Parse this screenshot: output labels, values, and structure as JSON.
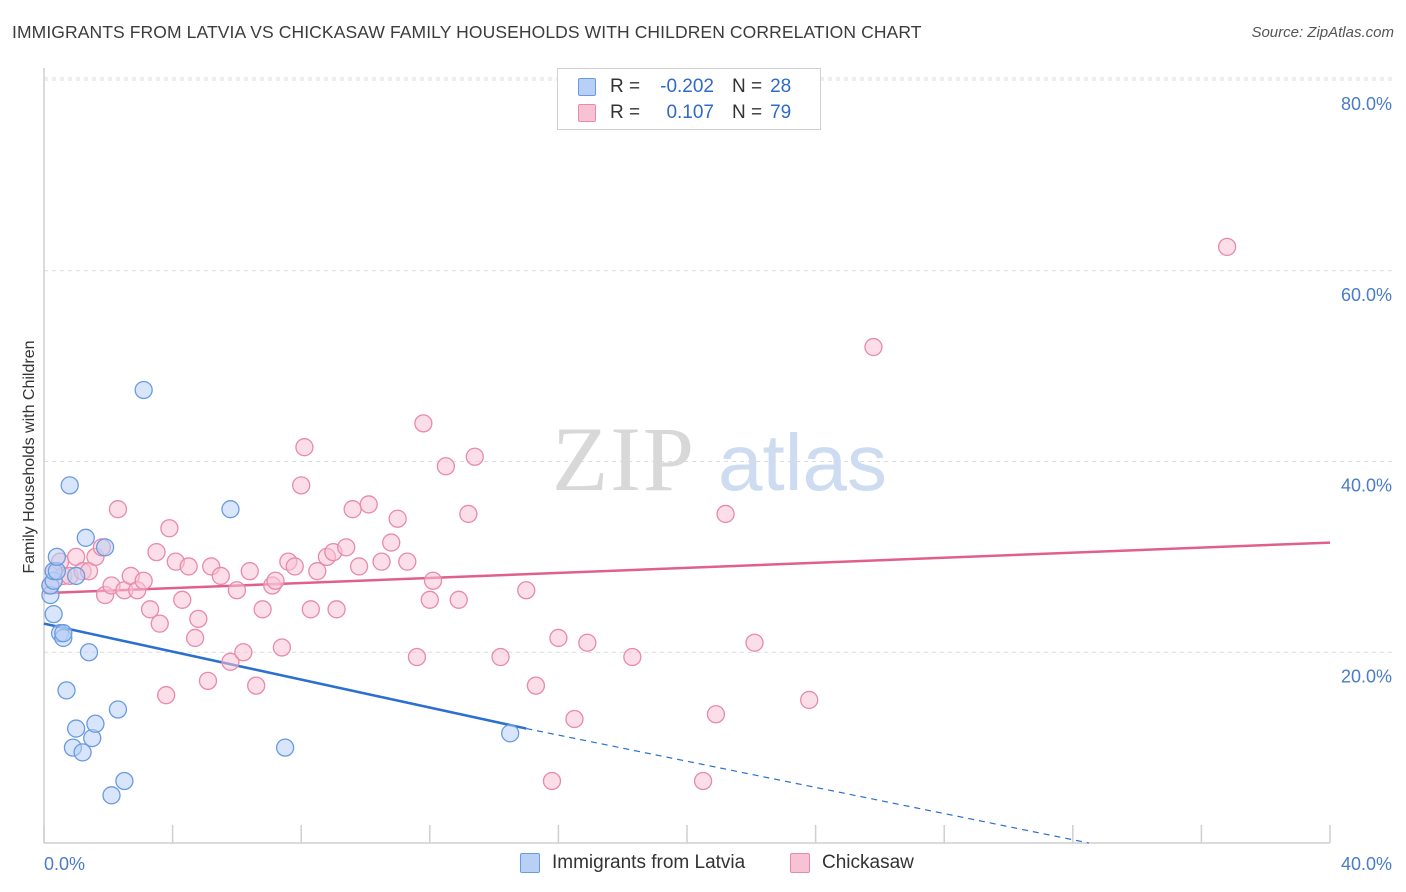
{
  "chart_data": {
    "type": "scatter",
    "title": "IMMIGRANTS FROM LATVIA VS CHICKASAW FAMILY HOUSEHOLDS WITH CHILDREN CORRELATION CHART",
    "source": "Source: ZipAtlas.com",
    "xlabel": "",
    "ylabel": "Family Households with Children",
    "xlim": [
      0,
      40
    ],
    "ylim": [
      0,
      80
    ],
    "x_ticks": [
      "0.0%",
      "40.0%"
    ],
    "y_ticks": [
      {
        "value": 20,
        "label": "20.0%"
      },
      {
        "value": 40,
        "label": "40.0%"
      },
      {
        "value": 60,
        "label": "60.0%"
      },
      {
        "value": 80,
        "label": "80.0%"
      }
    ],
    "watermark": {
      "part1": "ZIP",
      "part2": "atlas"
    },
    "legend": [
      {
        "r_label": "R =",
        "r_value": "-0.202",
        "n_label": "N =",
        "n_value": "28"
      },
      {
        "r_label": "R =",
        "r_value": "0.107",
        "n_label": "N =",
        "n_value": "79"
      }
    ],
    "series": [
      {
        "name": "Immigrants from Latvia",
        "color": "#6a9be0",
        "fill": "#b8d0f5",
        "line_color": "#2b6fd0",
        "trend": {
          "x0": 0,
          "y0": 23.0,
          "x1": 15.0,
          "y1": 12.0,
          "dash_to_x": 32.5,
          "dash_to_y": 0.0
        },
        "points": [
          [
            0.2,
            26.0
          ],
          [
            0.2,
            27.0
          ],
          [
            0.3,
            27.5
          ],
          [
            0.3,
            28.5
          ],
          [
            0.3,
            24.0
          ],
          [
            0.4,
            28.5
          ],
          [
            0.4,
            30.0
          ],
          [
            0.5,
            22.0
          ],
          [
            0.6,
            21.5
          ],
          [
            0.6,
            22.0
          ],
          [
            0.7,
            16.0
          ],
          [
            0.8,
            37.5
          ],
          [
            0.9,
            10.0
          ],
          [
            1.0,
            12.0
          ],
          [
            1.0,
            28.0
          ],
          [
            1.2,
            9.5
          ],
          [
            1.3,
            32.0
          ],
          [
            1.4,
            20.0
          ],
          [
            1.5,
            11.0
          ],
          [
            1.6,
            12.5
          ],
          [
            1.9,
            31.0
          ],
          [
            2.1,
            5.0
          ],
          [
            2.3,
            14.0
          ],
          [
            2.5,
            6.5
          ],
          [
            3.1,
            47.5
          ],
          [
            5.8,
            35.0
          ],
          [
            7.5,
            10.0
          ],
          [
            14.5,
            11.5
          ]
        ]
      },
      {
        "name": "Chickasaw",
        "color": "#e88aaa",
        "fill": "#f7c3d4",
        "line_color": "#e0608a",
        "trend": {
          "x0": 0,
          "y0": 26.2,
          "x1": 40.0,
          "y1": 31.5
        },
        "points": [
          [
            0.3,
            28.5
          ],
          [
            0.5,
            29.5
          ],
          [
            0.6,
            28.0
          ],
          [
            0.8,
            28.0
          ],
          [
            1.0,
            30.0
          ],
          [
            1.2,
            28.5
          ],
          [
            1.4,
            28.5
          ],
          [
            1.6,
            30.0
          ],
          [
            1.8,
            31.0
          ],
          [
            1.9,
            26.0
          ],
          [
            2.1,
            27.0
          ],
          [
            2.3,
            35.0
          ],
          [
            2.5,
            26.5
          ],
          [
            2.7,
            28.0
          ],
          [
            2.9,
            26.5
          ],
          [
            3.1,
            27.5
          ],
          [
            3.3,
            24.5
          ],
          [
            3.5,
            30.5
          ],
          [
            3.6,
            23.0
          ],
          [
            3.8,
            15.5
          ],
          [
            3.9,
            33.0
          ],
          [
            4.1,
            29.5
          ],
          [
            4.3,
            25.5
          ],
          [
            4.5,
            29.0
          ],
          [
            4.7,
            21.5
          ],
          [
            4.8,
            23.5
          ],
          [
            5.1,
            17.0
          ],
          [
            5.2,
            29.0
          ],
          [
            5.5,
            28.0
          ],
          [
            5.8,
            19.0
          ],
          [
            6.0,
            26.5
          ],
          [
            6.2,
            20.0
          ],
          [
            6.4,
            28.5
          ],
          [
            6.6,
            16.5
          ],
          [
            6.8,
            24.5
          ],
          [
            7.1,
            27.0
          ],
          [
            7.2,
            27.5
          ],
          [
            7.4,
            20.5
          ],
          [
            7.6,
            29.5
          ],
          [
            7.8,
            29.0
          ],
          [
            8.0,
            37.5
          ],
          [
            8.1,
            41.5
          ],
          [
            8.3,
            24.5
          ],
          [
            8.5,
            28.5
          ],
          [
            8.8,
            30.0
          ],
          [
            9.0,
            30.5
          ],
          [
            9.1,
            24.5
          ],
          [
            9.4,
            31.0
          ],
          [
            9.6,
            35.0
          ],
          [
            9.8,
            29.0
          ],
          [
            10.1,
            35.5
          ],
          [
            10.5,
            29.5
          ],
          [
            10.8,
            31.5
          ],
          [
            11.0,
            34.0
          ],
          [
            11.3,
            29.5
          ],
          [
            11.6,
            19.5
          ],
          [
            11.8,
            44.0
          ],
          [
            12.0,
            25.5
          ],
          [
            12.1,
            27.5
          ],
          [
            12.5,
            39.5
          ],
          [
            12.9,
            25.5
          ],
          [
            13.2,
            34.5
          ],
          [
            13.4,
            40.5
          ],
          [
            14.2,
            19.5
          ],
          [
            15.0,
            26.5
          ],
          [
            15.3,
            16.5
          ],
          [
            15.8,
            6.5
          ],
          [
            16.0,
            21.5
          ],
          [
            16.5,
            13.0
          ],
          [
            16.9,
            21.0
          ],
          [
            18.3,
            19.5
          ],
          [
            20.5,
            6.5
          ],
          [
            20.9,
            13.5
          ],
          [
            21.2,
            34.5
          ],
          [
            22.1,
            21.0
          ],
          [
            23.8,
            15.0
          ],
          [
            25.8,
            52.0
          ],
          [
            36.8,
            62.5
          ],
          [
            0.2,
            27.0
          ]
        ]
      }
    ]
  }
}
